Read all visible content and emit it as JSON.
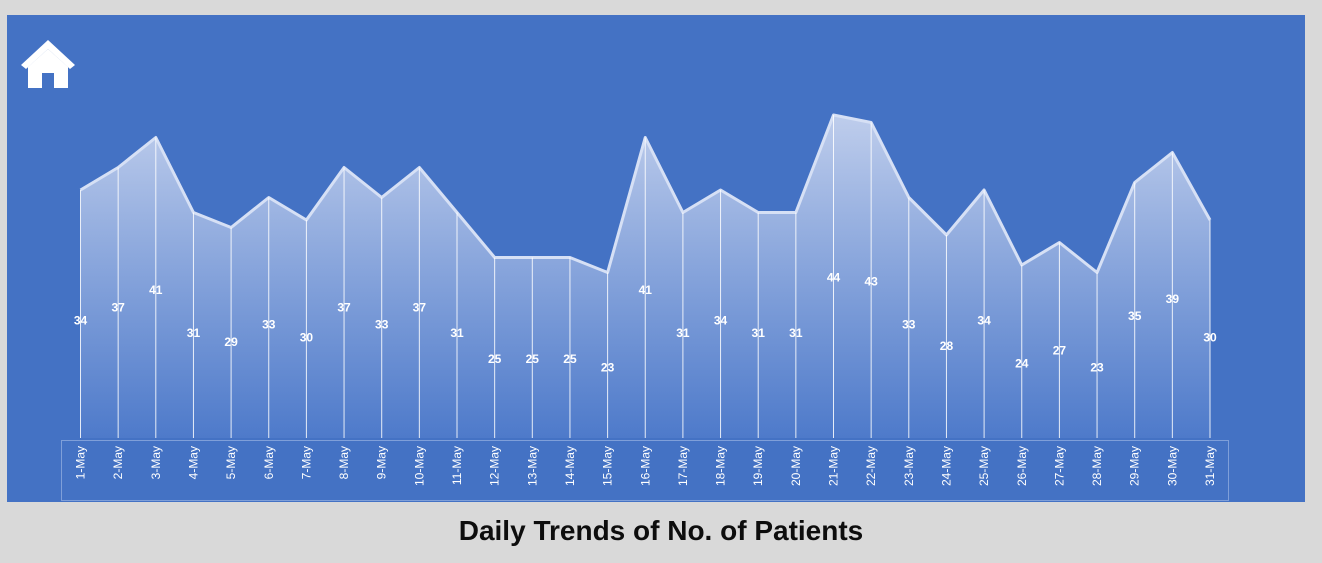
{
  "navigation": {
    "home_icon": "home-icon"
  },
  "colors": {
    "panel_background": "#4472c4",
    "page_background": "#d9d9d9",
    "area_fill_top": "#c5d2ee",
    "area_fill_bottom": "#4f7bcb",
    "line": "#d6e0f5",
    "text": "#ffffff",
    "title": "#0d0d0d"
  },
  "chart_data": {
    "type": "area",
    "title": "Daily Trends of No. of Patients",
    "xlabel": "",
    "ylabel": "",
    "grid": false,
    "legend": "none",
    "categories": [
      "1-May",
      "2-May",
      "3-May",
      "4-May",
      "5-May",
      "6-May",
      "7-May",
      "8-May",
      "9-May",
      "10-May",
      "11-May",
      "12-May",
      "13-May",
      "14-May",
      "15-May",
      "16-May",
      "17-May",
      "18-May",
      "19-May",
      "20-May",
      "21-May",
      "22-May",
      "23-May",
      "24-May",
      "25-May",
      "26-May",
      "27-May",
      "28-May",
      "29-May",
      "30-May",
      "31-May"
    ],
    "values": [
      34,
      37,
      41,
      31,
      29,
      33,
      30,
      37,
      33,
      37,
      31,
      25,
      25,
      25,
      23,
      41,
      31,
      34,
      31,
      31,
      44,
      43,
      33,
      28,
      34,
      24,
      27,
      23,
      35,
      39,
      30
    ]
  }
}
